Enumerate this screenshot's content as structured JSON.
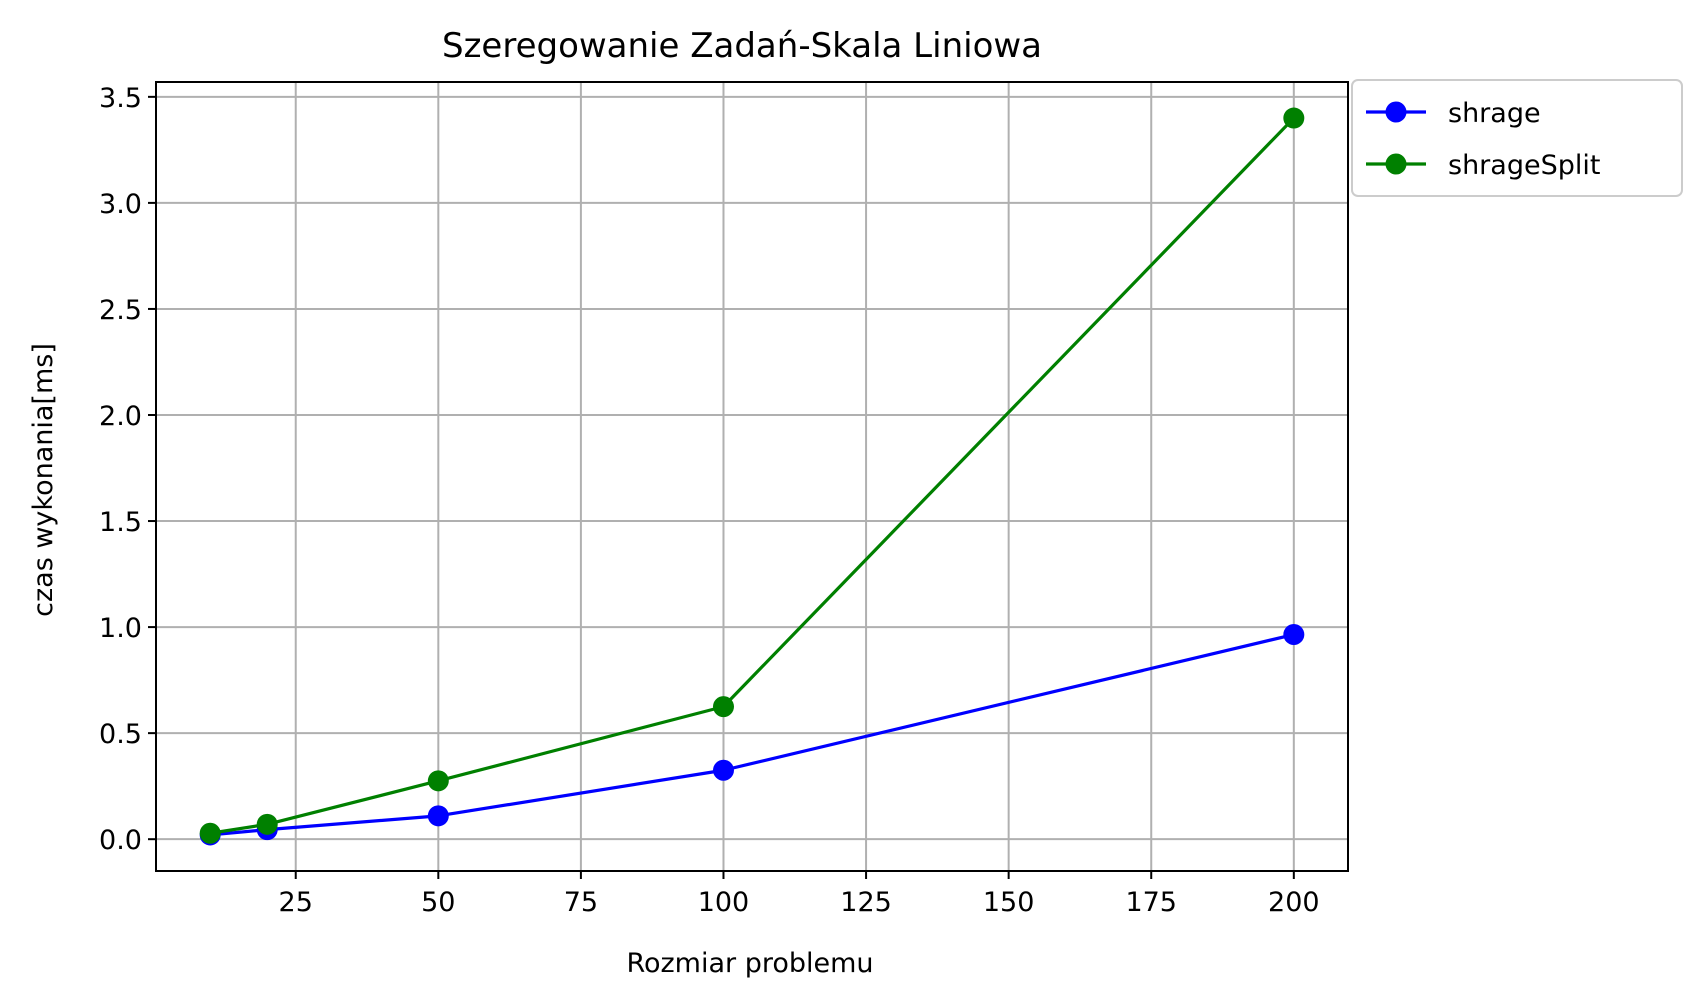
{
  "chart_data": {
    "type": "line",
    "title": "Szeregowanie Zadań-Skala Liniowa",
    "xlabel": "Rozmiar problemu",
    "ylabel": "czas wykonania[ms]",
    "xlim": [
      0.5,
      209.5
    ],
    "ylim": [
      -0.15,
      3.57
    ],
    "xticks": [
      25,
      50,
      75,
      100,
      125,
      150,
      175,
      200
    ],
    "xtick_labels": [
      "25",
      "50",
      "75",
      "100",
      "125",
      "150",
      "175",
      "200"
    ],
    "yticks": [
      0.0,
      0.5,
      1.0,
      1.5,
      2.0,
      2.5,
      3.0,
      3.5
    ],
    "ytick_labels": [
      "0.0",
      "0.5",
      "1.0",
      "1.5",
      "2.0",
      "2.5",
      "3.0",
      "3.5"
    ],
    "grid": true,
    "legend_position": "outside-top-right",
    "x": [
      10,
      20,
      50,
      100,
      200
    ],
    "series": [
      {
        "name": "shrage",
        "color": "#0000ff",
        "values": [
          0.02,
          0.045,
          0.11,
          0.325,
          0.965
        ]
      },
      {
        "name": "shrageSplit",
        "color": "#008000",
        "values": [
          0.028,
          0.07,
          0.275,
          0.625,
          3.4
        ]
      }
    ]
  }
}
